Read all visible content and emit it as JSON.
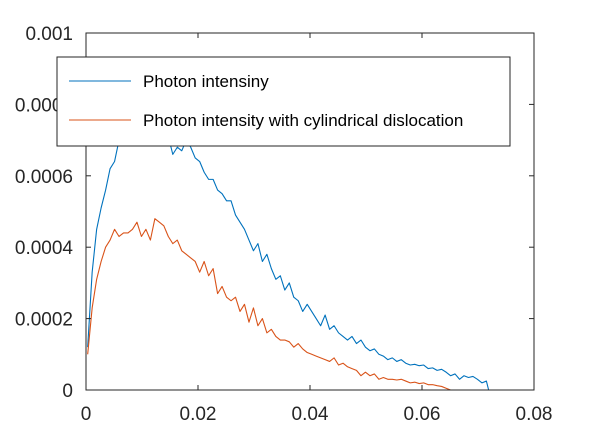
{
  "chart_data": {
    "type": "line",
    "title": "",
    "xlabel": "",
    "ylabel": "",
    "xlim": [
      0,
      0.08
    ],
    "ylim": [
      0,
      0.001
    ],
    "xticks": [
      0,
      0.02,
      0.04,
      0.06,
      0.08
    ],
    "xtick_labels": [
      "0",
      "0.02",
      "0.04",
      "0.06",
      "0.08"
    ],
    "yticks": [
      0,
      0.0002,
      0.0004,
      0.0006,
      0.0008,
      0.001
    ],
    "ytick_labels": [
      "0",
      "0.0002",
      "0.0004",
      "0.0006",
      "0.0008",
      "0.001"
    ],
    "grid": false,
    "legend_position": "top",
    "series": [
      {
        "name": "Photon intensiny",
        "color": "#0072bd",
        "x": [
          0.0003,
          0.0011,
          0.0019,
          0.0027,
          0.0035,
          0.0043,
          0.0051,
          0.0059,
          0.0067,
          0.0075,
          0.0083,
          0.0091,
          0.0099,
          0.0107,
          0.0115,
          0.0123,
          0.0131,
          0.0139,
          0.0147,
          0.0155,
          0.0163,
          0.0171,
          0.0179,
          0.0187,
          0.0195,
          0.0203,
          0.0211,
          0.0219,
          0.0227,
          0.0235,
          0.0243,
          0.0251,
          0.0259,
          0.0267,
          0.0275,
          0.0283,
          0.0291,
          0.0299,
          0.0307,
          0.0315,
          0.0323,
          0.0331,
          0.0339,
          0.0347,
          0.0355,
          0.0363,
          0.0371,
          0.0379,
          0.0387,
          0.0395,
          0.0403,
          0.0411,
          0.0419,
          0.0427,
          0.0435,
          0.0443,
          0.0451,
          0.0459,
          0.0467,
          0.0475,
          0.0483,
          0.0491,
          0.0499,
          0.0507,
          0.0515,
          0.0523,
          0.0531,
          0.0539,
          0.0547,
          0.0555,
          0.0563,
          0.0571,
          0.0579,
          0.0587,
          0.0595,
          0.0603,
          0.0611,
          0.0619,
          0.0627,
          0.0635,
          0.0643,
          0.0651,
          0.0659,
          0.0667,
          0.0675,
          0.0683,
          0.0691,
          0.0699,
          0.0707,
          0.0715,
          0.0719
        ],
        "y": [
          0.00012,
          0.00033,
          0.00045,
          0.00051,
          0.00056,
          0.00062,
          0.00064,
          0.0007,
          0.00075,
          0.00079,
          0.00082,
          0.00083,
          0.00086,
          0.00085,
          0.00082,
          0.00079,
          0.00076,
          0.00074,
          0.00071,
          0.00066,
          0.00068,
          0.00067,
          0.0007,
          0.00068,
          0.00065,
          0.00064,
          0.00061,
          0.00059,
          0.00059,
          0.00056,
          0.00055,
          0.00053,
          0.00053,
          0.00049,
          0.00047,
          0.00045,
          0.00042,
          0.00039,
          0.00041,
          0.00036,
          0.00038,
          0.00034,
          0.00031,
          0.00032,
          0.00028,
          0.0003,
          0.00026,
          0.00025,
          0.00022,
          0.00024,
          0.00022,
          0.0002,
          0.00018,
          0.00021,
          0.00017,
          0.00018,
          0.00016,
          0.00015,
          0.00014,
          0.00015,
          0.00013,
          0.00014,
          0.00012,
          0.00011,
          0.000115,
          0.0001,
          9.5e-05,
          8.5e-05,
          9e-05,
          8e-05,
          8.5e-05,
          7.5e-05,
          7e-05,
          7.2e-05,
          6.8e-05,
          7e-05,
          6e-05,
          6.2e-05,
          5.5e-05,
          5.8e-05,
          5e-05,
          4e-05,
          4.5e-05,
          3e-05,
          4e-05,
          3.5e-05,
          3.8e-05,
          3e-05,
          2e-05,
          2.5e-05,
          0.0
        ]
      },
      {
        "name": "Photon intensity with cylindrical dislocation",
        "color": "#d95319",
        "x": [
          0.0003,
          0.0011,
          0.0019,
          0.0027,
          0.0035,
          0.0043,
          0.0051,
          0.0059,
          0.0067,
          0.0075,
          0.0083,
          0.0091,
          0.0099,
          0.0107,
          0.0115,
          0.0123,
          0.0131,
          0.0139,
          0.0147,
          0.0155,
          0.0163,
          0.0171,
          0.0179,
          0.0187,
          0.0195,
          0.0203,
          0.0211,
          0.0219,
          0.0227,
          0.0235,
          0.0243,
          0.0251,
          0.0259,
          0.0267,
          0.0275,
          0.0283,
          0.0291,
          0.0299,
          0.0307,
          0.0315,
          0.0323,
          0.0331,
          0.0339,
          0.0347,
          0.0355,
          0.0363,
          0.0371,
          0.0379,
          0.0387,
          0.0395,
          0.0403,
          0.0411,
          0.0419,
          0.0427,
          0.0435,
          0.0443,
          0.0451,
          0.0459,
          0.0467,
          0.0475,
          0.0483,
          0.0491,
          0.0499,
          0.0507,
          0.0515,
          0.0523,
          0.0531,
          0.0539,
          0.0547,
          0.0555,
          0.0563,
          0.0571,
          0.0579,
          0.0587,
          0.0595,
          0.0603,
          0.0611,
          0.0619,
          0.0627,
          0.0635,
          0.0643,
          0.0651
        ],
        "y": [
          0.0001,
          0.00023,
          0.00031,
          0.00036,
          0.0004,
          0.00042,
          0.00045,
          0.00043,
          0.00044,
          0.00044,
          0.00045,
          0.00047,
          0.00043,
          0.00045,
          0.00042,
          0.00048,
          0.00047,
          0.00046,
          0.00043,
          0.00041,
          0.00042,
          0.00039,
          0.00038,
          0.00037,
          0.00036,
          0.00033,
          0.00036,
          0.00032,
          0.00034,
          0.00027,
          0.00029,
          0.00026,
          0.00025,
          0.00026,
          0.00022,
          0.00024,
          0.00019,
          0.00023,
          0.00018,
          0.0002,
          0.00016,
          0.00017,
          0.00015,
          0.00014,
          0.00014,
          0.000135,
          0.00012,
          0.00013,
          0.000115,
          0.000105,
          0.0001,
          9.5e-05,
          9e-05,
          8.5e-05,
          8e-05,
          9e-05,
          7e-05,
          7.5e-05,
          6.5e-05,
          6e-05,
          5.5e-05,
          4e-05,
          5e-05,
          4e-05,
          4.5e-05,
          3e-05,
          3.5e-05,
          3e-05,
          3e-05,
          2.8e-05,
          3e-05,
          2.5e-05,
          2e-05,
          2.2e-05,
          1.8e-05,
          2e-05,
          1.5e-05,
          1.5e-05,
          1.2e-05,
          1e-05,
          5e-06,
          0.0
        ]
      }
    ]
  }
}
